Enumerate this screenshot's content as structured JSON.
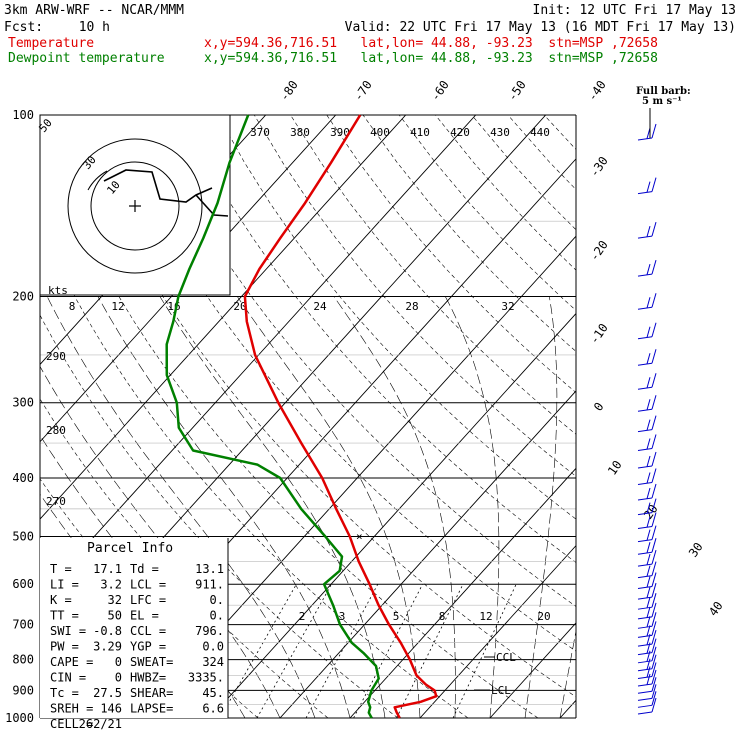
{
  "header": {
    "model": "3km ARW-WRF -- NCAR/MMM",
    "init": "Init: 12 UTC Fri 17 May 13",
    "fcst_label": "Fcst:",
    "fcst_value": "10 h",
    "valid": "Valid: 22 UTC Fri 17 May 13 (16 MDT Fri 17 May 13)",
    "temp_label": "Temperature",
    "temp_info": "x,y=594.36,716.51   lat,lon= 44.88, -93.23  stn=MSP ,72658",
    "dew_label": "Dewpoint temperature",
    "dew_info": "x,y=594.36,716.51   lat,lon= 44.88, -93.23  stn=MSP ,72658",
    "barb_title": "Full barb:",
    "barb_units": "5 m s⁻¹"
  },
  "colors": {
    "temperature": "#e00000",
    "dewpoint": "#008000",
    "grid": "#000000",
    "barbs": "#0000cc"
  },
  "chart_data": {
    "type": "line",
    "pressure_levels": [
      100,
      200,
      300,
      400,
      500,
      600,
      700,
      800,
      900,
      1000
    ],
    "isotherm_labels": [
      "-80",
      "-70",
      "-60",
      "-50",
      "-40",
      "-30",
      "-20",
      "-10",
      "0",
      "10",
      "20",
      "30",
      "40"
    ],
    "theta_labels": [
      "370",
      "380",
      "390",
      "400",
      "410",
      "420",
      "430",
      "440"
    ],
    "dry_labels_lower": [
      "290",
      "280",
      "270"
    ],
    "mixing_labels": [
      "2",
      "3",
      "5",
      "8",
      "12",
      "20"
    ],
    "hodo_kts_label": "kts",
    "hodo_speed_labels": [
      "8",
      "12",
      "16",
      "20",
      "24",
      "28",
      "32"
    ],
    "hodo_ring_labels": [
      "50",
      "30",
      "10"
    ],
    "lcl_label": "LCL",
    "ccl_label": "CCL",
    "series": [
      {
        "name": "Temperature",
        "points": [
          [
            1000,
            17.1
          ],
          [
            980,
            16.0
          ],
          [
            960,
            15.0
          ],
          [
            940,
            18.0
          ],
          [
            920,
            19.5
          ],
          [
            900,
            18.5
          ],
          [
            880,
            16.5
          ],
          [
            850,
            14.0
          ],
          [
            800,
            11.0
          ],
          [
            750,
            7.5
          ],
          [
            700,
            3.5
          ],
          [
            650,
            -0.5
          ],
          [
            600,
            -4.5
          ],
          [
            550,
            -9.0
          ],
          [
            500,
            -13.5
          ],
          [
            450,
            -19.0
          ],
          [
            400,
            -25.0
          ],
          [
            350,
            -32.5
          ],
          [
            300,
            -41.0
          ],
          [
            250,
            -50.5
          ],
          [
            220,
            -56.0
          ],
          [
            200,
            -59.5
          ],
          [
            180,
            -61.0
          ],
          [
            160,
            -62.0
          ],
          [
            140,
            -63.0
          ],
          [
            120,
            -64.5
          ],
          [
            100,
            -66.5
          ]
        ]
      },
      {
        "name": "Dewpoint temperature",
        "points": [
          [
            1000,
            13.1
          ],
          [
            980,
            12.0
          ],
          [
            960,
            11.5
          ],
          [
            940,
            10.5
          ],
          [
            900,
            9.5
          ],
          [
            860,
            9.0
          ],
          [
            820,
            7.0
          ],
          [
            780,
            3.5
          ],
          [
            750,
            0.5
          ],
          [
            700,
            -3.5
          ],
          [
            650,
            -7.0
          ],
          [
            600,
            -11.0
          ],
          [
            570,
            -10.5
          ],
          [
            540,
            -12.0
          ],
          [
            500,
            -17.0
          ],
          [
            450,
            -24.0
          ],
          [
            400,
            -31.0
          ],
          [
            380,
            -36.0
          ],
          [
            360,
            -47.0
          ],
          [
            330,
            -52.0
          ],
          [
            300,
            -55.5
          ],
          [
            270,
            -60.5
          ],
          [
            240,
            -64.5
          ],
          [
            220,
            -66.5
          ],
          [
            200,
            -69.0
          ],
          [
            180,
            -71.0
          ],
          [
            160,
            -73.0
          ],
          [
            140,
            -75.5
          ],
          [
            120,
            -79.0
          ],
          [
            100,
            -82.5
          ]
        ]
      }
    ]
  },
  "parcel_info": {
    "title": "Parcel Info",
    "rows": [
      [
        "T  =",
        "17.1",
        "Td =",
        "13.1"
      ],
      [
        "LI =",
        "3.2",
        "LCL =",
        "911."
      ],
      [
        "K  =",
        "32",
        "LFC =",
        "0."
      ],
      [
        "TT =",
        "50",
        "EL =",
        "0."
      ],
      [
        "SWI =",
        "-0.8",
        "CCL =",
        "796."
      ],
      [
        "PW =",
        "3.29",
        "YGP =",
        "0.0"
      ],
      [
        "CAPE =",
        "0",
        "SWEAT=",
        "324"
      ],
      [
        "CIN =",
        "0",
        "HWBZ=",
        "3335."
      ],
      [
        "Tc =",
        "27.5",
        "SHEAR=",
        "45."
      ],
      [
        "SREH =",
        "146",
        "LAPSE=",
        "6.6"
      ],
      [
        "CELL =",
        "262/21",
        "",
        ""
      ]
    ]
  }
}
